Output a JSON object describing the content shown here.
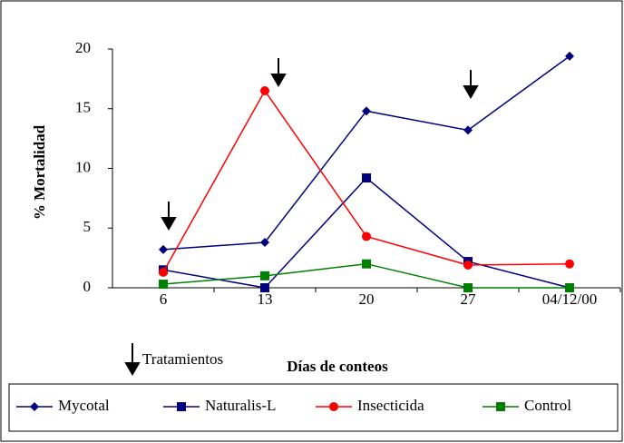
{
  "chart_data": {
    "type": "line",
    "categories": [
      "6",
      "13",
      "20",
      "27",
      "04/12/00"
    ],
    "series": [
      {
        "name": "Mycotal",
        "color": "#000080",
        "marker": "diamond",
        "values": [
          3.2,
          3.8,
          14.8,
          13.2,
          19.4
        ]
      },
      {
        "name": "Naturalis-L",
        "color": "#000080",
        "marker": "square",
        "values": [
          1.5,
          0,
          9.2,
          2.2,
          0
        ]
      },
      {
        "name": "Insecticida",
        "color": "#ff0000",
        "marker": "circle",
        "values": [
          1.3,
          16.5,
          4.3,
          1.9,
          2.0
        ]
      },
      {
        "name": "Control",
        "color": "#008000",
        "marker": "square",
        "values": [
          0.3,
          1.0,
          2.0,
          0,
          0
        ]
      }
    ],
    "xlabel": "Días de conteos",
    "ylabel": "% Mortalidad",
    "annotation": "Tratamientos",
    "ylim": [
      0,
      20
    ],
    "yticks": [
      0,
      5,
      10,
      15,
      20
    ],
    "grid": false,
    "legend": "bottom"
  }
}
